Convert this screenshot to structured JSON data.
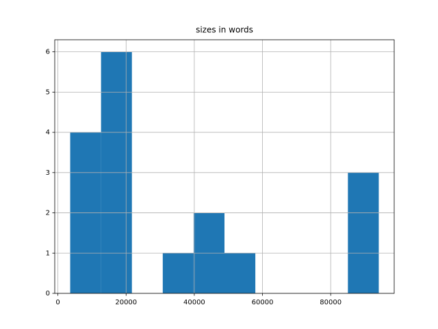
{
  "chart_data": {
    "type": "histogram",
    "title": "sizes in words",
    "bins": [
      3600,
      12650,
      21700,
      30750,
      39800,
      48850,
      57900,
      66950,
      76000,
      85050,
      94100
    ],
    "counts": [
      4,
      6,
      0,
      1,
      2,
      1,
      0,
      0,
      0,
      3
    ],
    "color": "#1f77b4",
    "xlim": [
      -925,
      98625
    ],
    "xticks": [
      0,
      20000,
      40000,
      60000,
      80000
    ],
    "ylim": [
      0,
      6.3
    ],
    "yticks": [
      0,
      1,
      2,
      3,
      4,
      5,
      6
    ],
    "grid": true
  }
}
